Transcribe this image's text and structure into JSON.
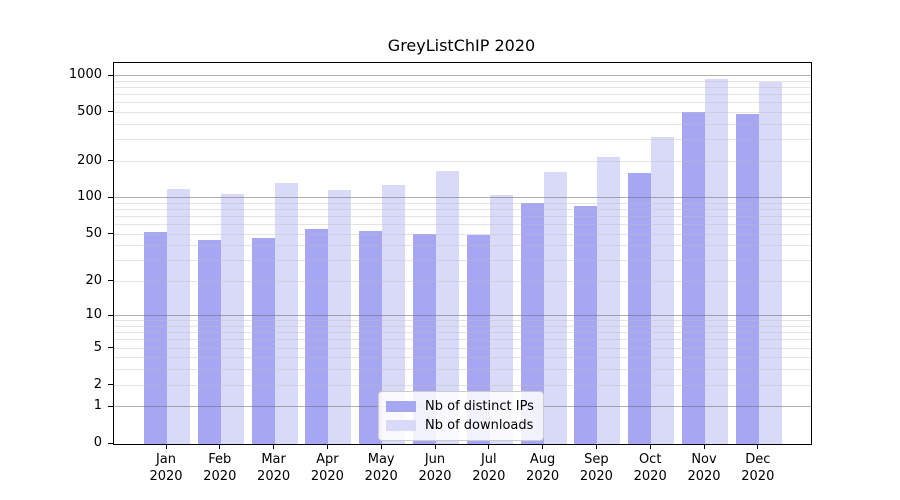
{
  "chart_data": {
    "type": "bar",
    "title": "GreyListChIP 2020",
    "categories": [
      "Jan 2020",
      "Feb 2020",
      "Mar 2020",
      "Apr 2020",
      "May 2020",
      "Jun 2020",
      "Jul 2020",
      "Aug 2020",
      "Sep 2020",
      "Oct 2020",
      "Nov 2020",
      "Dec 2020"
    ],
    "series": [
      {
        "name": "Nb of distinct IPs",
        "color": "#a6a6f2",
        "values": [
          53,
          45,
          47,
          56,
          54,
          51,
          50,
          92,
          86,
          160,
          505,
          490
        ]
      },
      {
        "name": "Nb of downloads",
        "color": "#d9d9f8",
        "values": [
          120,
          108,
          134,
          117,
          129,
          166,
          106,
          164,
          220,
          320,
          950,
          890
        ]
      }
    ],
    "xlabel": "",
    "ylabel": "",
    "yscale": "log(value+1)",
    "y_ticks": [
      0,
      1,
      2,
      5,
      10,
      20,
      50,
      100,
      200,
      500,
      1000
    ],
    "ylim": [
      0,
      1100
    ],
    "grid": "horizontal, major decades darker, minors lighter, drawn over bars",
    "legend_position": "lower center"
  }
}
